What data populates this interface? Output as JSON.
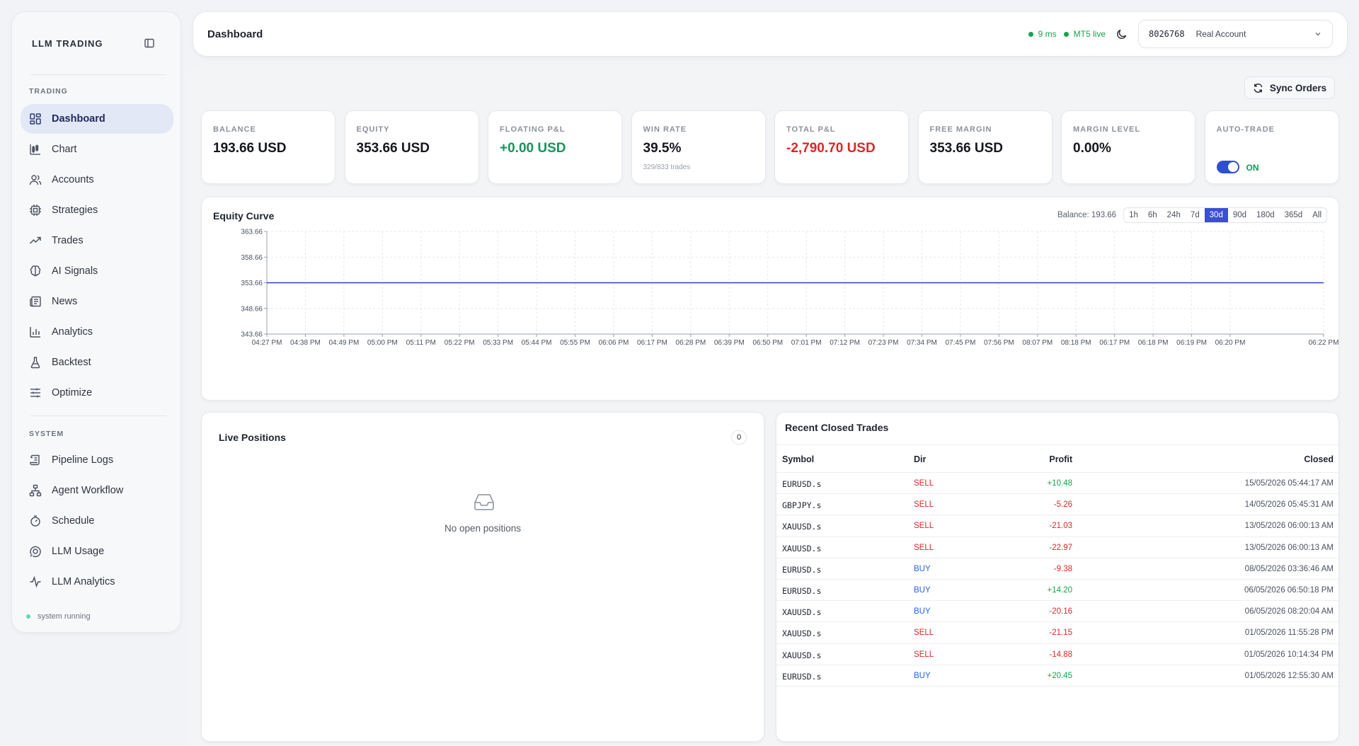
{
  "sidebar": {
    "brand": "LLM TRADING",
    "sections": {
      "trading": "TRADING",
      "system": "SYSTEM"
    },
    "trading_items": [
      {
        "label": "Dashboard",
        "icon": "dashboard-icon",
        "active": true
      },
      {
        "label": "Chart",
        "icon": "candlestick-icon"
      },
      {
        "label": "Accounts",
        "icon": "users-icon"
      },
      {
        "label": "Strategies",
        "icon": "cpu-icon"
      },
      {
        "label": "Trades",
        "icon": "trend-up-icon"
      },
      {
        "label": "AI Signals",
        "icon": "brain-icon"
      },
      {
        "label": "News",
        "icon": "newspaper-icon"
      },
      {
        "label": "Analytics",
        "icon": "bar-chart-icon"
      },
      {
        "label": "Backtest",
        "icon": "flask-icon"
      },
      {
        "label": "Optimize",
        "icon": "sliders-icon"
      }
    ],
    "system_items": [
      {
        "label": "Pipeline Logs",
        "icon": "scroll-icon"
      },
      {
        "label": "Agent Workflow",
        "icon": "workflow-icon"
      },
      {
        "label": "Schedule",
        "icon": "timer-icon"
      },
      {
        "label": "LLM Usage",
        "icon": "usage-icon"
      },
      {
        "label": "LLM Analytics",
        "icon": "activity-icon"
      }
    ],
    "status": "system running"
  },
  "header": {
    "title": "Dashboard",
    "latency": "9 ms",
    "connection": "MT5 live",
    "account_id": "8026768",
    "account_type": "Real Account"
  },
  "toolbar": {
    "sync_label": "Sync Orders"
  },
  "kpis": {
    "balance": {
      "label": "BALANCE",
      "value": "193.66 USD"
    },
    "equity": {
      "label": "EQUITY",
      "value": "353.66 USD"
    },
    "floating": {
      "label": "FLOATING P&L",
      "value": "+0.00 USD"
    },
    "winrate": {
      "label": "WIN RATE",
      "value": "39.5%",
      "sub": "329/833 trades"
    },
    "total": {
      "label": "TOTAL P&L",
      "value": "-2,790.70 USD"
    },
    "free_margin": {
      "label": "FREE MARGIN",
      "value": "353.66 USD"
    },
    "margin_level": {
      "label": "MARGIN LEVEL",
      "value": "0.00%"
    },
    "auto_trade": {
      "label": "AUTO-TRADE",
      "state": "ON"
    }
  },
  "equity_chart": {
    "title": "Equity Curve",
    "balance_label": "Balance: 193.66",
    "ranges": [
      "1h",
      "6h",
      "24h",
      "7d",
      "30d",
      "90d",
      "180d",
      "365d",
      "All"
    ],
    "active_range": "30d"
  },
  "chart_data": {
    "type": "line",
    "title": "Equity Curve",
    "xlabel": "",
    "ylabel": "",
    "ylim": [
      343.66,
      363.66
    ],
    "y_ticks": [
      "363.66",
      "358.66",
      "353.66",
      "348.66",
      "343.66"
    ],
    "x": [
      "04:27 PM",
      "04:38 PM",
      "04:49 PM",
      "05:00 PM",
      "05:11 PM",
      "05:22 PM",
      "05:33 PM",
      "05:44 PM",
      "05:55 PM",
      "06:06 PM",
      "06:17 PM",
      "06:28 PM",
      "06:39 PM",
      "06:50 PM",
      "07:01 PM",
      "07:12 PM",
      "07:23 PM",
      "07:34 PM",
      "07:45 PM",
      "07:56 PM",
      "08:07 PM",
      "08:18 PM",
      "06:17 PM",
      "06:18 PM",
      "06:19 PM",
      "06:20 PM",
      "06:22 PM"
    ],
    "series": [
      {
        "values": [
          353.66,
          353.66,
          353.66,
          353.66,
          353.66,
          353.66,
          353.66,
          353.66,
          353.66,
          353.66,
          353.66,
          353.66,
          353.66,
          353.66,
          353.66,
          353.66,
          353.66,
          353.66,
          353.66,
          353.66,
          353.66,
          353.66,
          353.66,
          353.66,
          353.66,
          353.66,
          353.66
        ],
        "color": "#2b3fc9"
      }
    ],
    "grid": true
  },
  "live_positions": {
    "title": "Live Positions",
    "count": "0",
    "empty_text": "No open positions"
  },
  "recent_trades": {
    "title": "Recent Closed Trades",
    "columns": [
      "Symbol",
      "Dir",
      "Profit",
      "Closed"
    ],
    "rows": [
      {
        "symbol": "EURUSD.s",
        "dir": "SELL",
        "profit": "+10.48",
        "closed": "15/05/2026 05:44:17 AM"
      },
      {
        "symbol": "GBPJPY.s",
        "dir": "SELL",
        "profit": "-5.26",
        "closed": "14/05/2026 05:45:31 AM"
      },
      {
        "symbol": "XAUUSD.s",
        "dir": "SELL",
        "profit": "-21.03",
        "closed": "13/05/2026 06:00:13 AM"
      },
      {
        "symbol": "XAUUSD.s",
        "dir": "SELL",
        "profit": "-22.97",
        "closed": "13/05/2026 06:00:13 AM"
      },
      {
        "symbol": "EURUSD.s",
        "dir": "BUY",
        "profit": "-9.38",
        "closed": "08/05/2026 03:36:46 AM"
      },
      {
        "symbol": "EURUSD.s",
        "dir": "BUY",
        "profit": "+14.20",
        "closed": "06/05/2026 06:50:18 PM"
      },
      {
        "symbol": "XAUUSD.s",
        "dir": "BUY",
        "profit": "-20.16",
        "closed": "06/05/2026 08:20:04 AM"
      },
      {
        "symbol": "XAUUSD.s",
        "dir": "SELL",
        "profit": "-21.15",
        "closed": "01/05/2026 11:55:28 PM"
      },
      {
        "symbol": "XAUUSD.s",
        "dir": "SELL",
        "profit": "-14.88",
        "closed": "01/05/2026 10:14:34 PM"
      },
      {
        "symbol": "EURUSD.s",
        "dir": "BUY",
        "profit": "+20.45",
        "closed": "01/05/2026 12:55:30 AM"
      }
    ]
  }
}
